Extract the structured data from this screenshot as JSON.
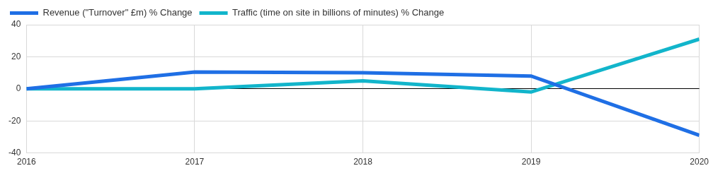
{
  "chart_data": {
    "type": "line",
    "categories": [
      "2016",
      "2017",
      "2018",
      "2019",
      "2020"
    ],
    "series": [
      {
        "name": "Revenue (\"Turnover\" £m) % Change",
        "color": "#1f6fe5",
        "values": [
          0,
          10.5,
          10,
          8,
          -29
        ]
      },
      {
        "name": "Traffic (time on site in billions of minutes) % Change",
        "color": "#12b5cb",
        "values": [
          0,
          0,
          5,
          -2,
          31
        ]
      }
    ],
    "ylim": [
      -40,
      40
    ],
    "yticks": [
      -40,
      -20,
      0,
      20,
      40
    ],
    "grid": true,
    "legend": "top-left"
  }
}
